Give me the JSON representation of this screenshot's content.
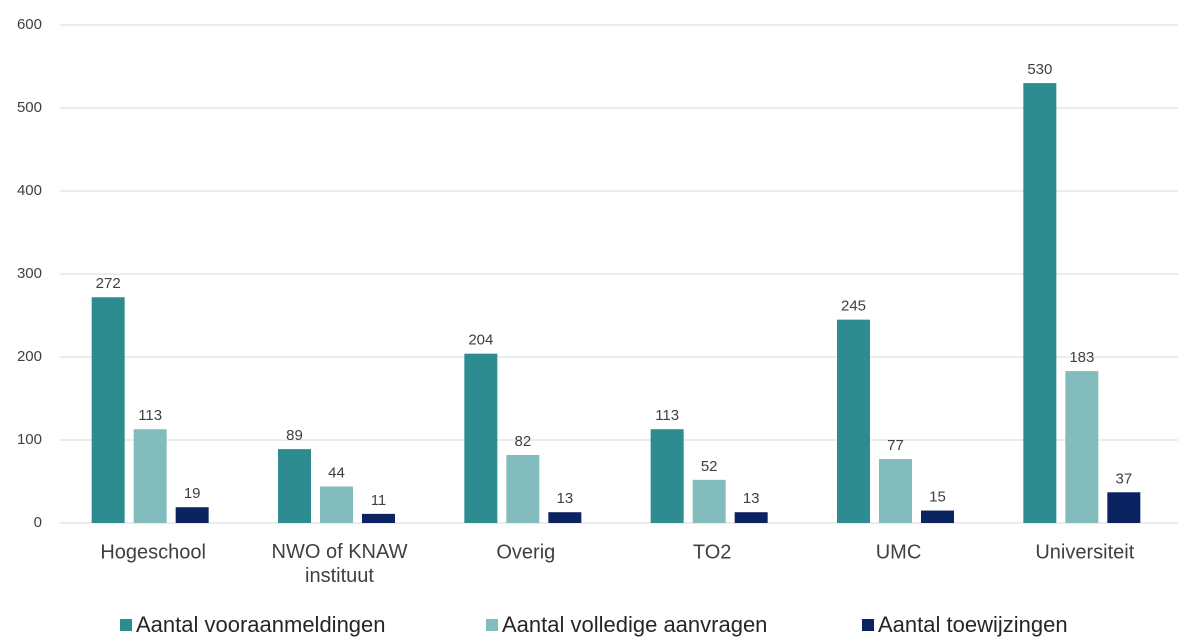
{
  "chart_data": {
    "type": "bar",
    "categories": [
      "Hogeschool",
      "NWO of KNAW instituut",
      "Overig",
      "TO2",
      "UMC",
      "Universiteit"
    ],
    "series": [
      {
        "name": "Aantal vooraanmeldingen",
        "color": "#2e8b8f",
        "values": [
          272,
          89,
          204,
          113,
          245,
          530
        ]
      },
      {
        "name": "Aantal volledige aanvragen",
        "color": "#82bcbd",
        "values": [
          113,
          44,
          82,
          52,
          77,
          183
        ]
      },
      {
        "name": "Aantal toewijzingen",
        "color": "#0b2461",
        "values": [
          19,
          11,
          13,
          13,
          15,
          37
        ]
      }
    ],
    "ylim": [
      0,
      600
    ],
    "yticks": [
      0,
      100,
      200,
      300,
      400,
      500,
      600
    ],
    "grid": true,
    "legend": "bottom"
  }
}
